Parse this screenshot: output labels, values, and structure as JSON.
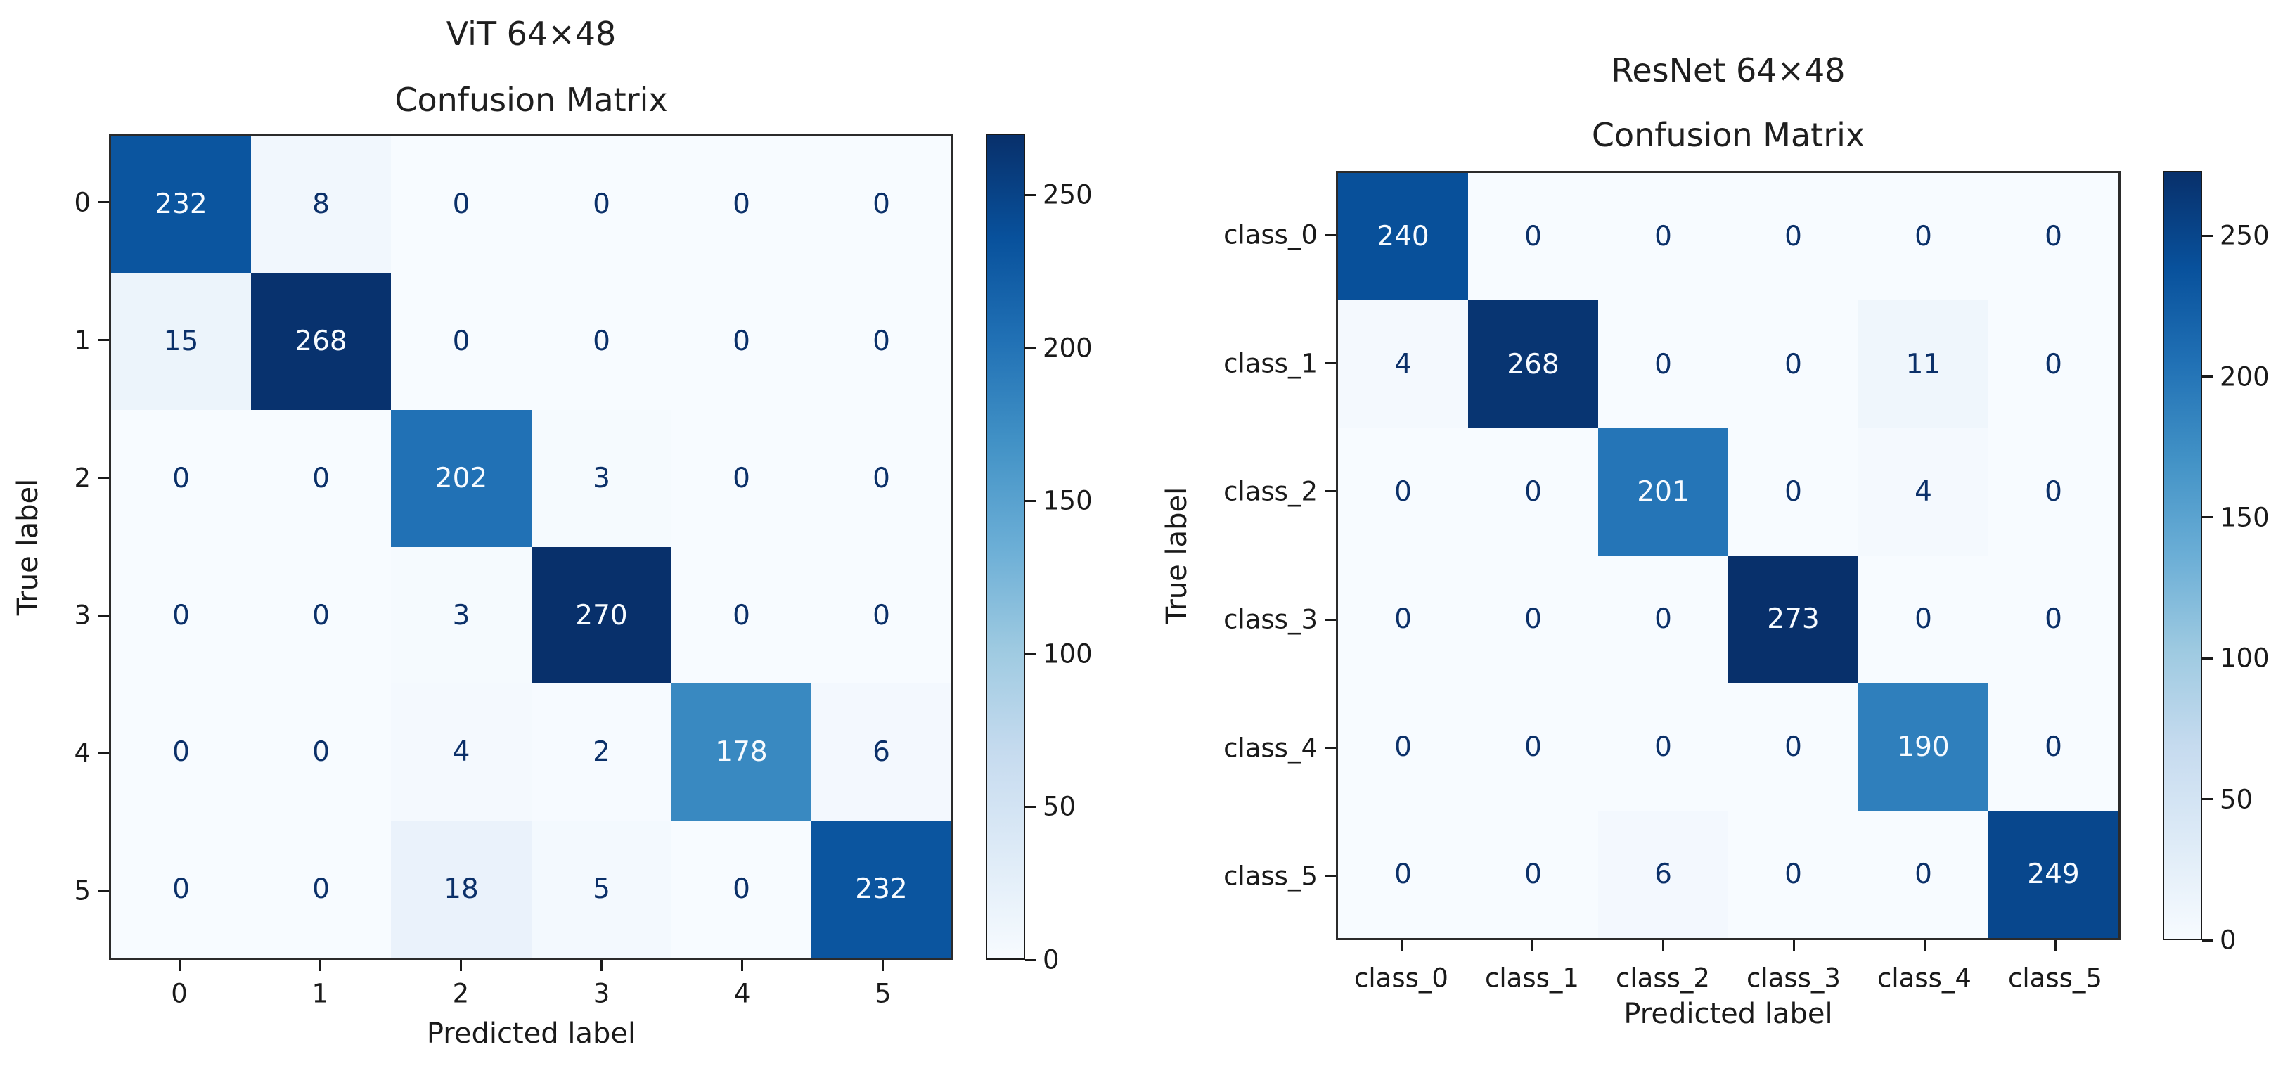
{
  "chart_data": [
    {
      "type": "heatmap",
      "suptitle": "ViT 64×48",
      "title": "Confusion Matrix",
      "xlabel": "Predicted label",
      "ylabel": "True label",
      "x_tick_labels": [
        "0",
        "1",
        "2",
        "3",
        "4",
        "5"
      ],
      "y_tick_labels": [
        "0",
        "1",
        "2",
        "3",
        "4",
        "5"
      ],
      "matrix": [
        [
          232,
          8,
          0,
          0,
          0,
          0
        ],
        [
          15,
          268,
          0,
          0,
          0,
          0
        ],
        [
          0,
          0,
          202,
          3,
          0,
          0
        ],
        [
          0,
          0,
          3,
          270,
          0,
          0
        ],
        [
          0,
          0,
          4,
          2,
          178,
          6
        ],
        [
          0,
          0,
          18,
          5,
          0,
          232
        ]
      ],
      "vmin": 0,
      "vmax": 270,
      "colorbar_ticks": [
        0,
        50,
        100,
        150,
        200,
        250
      ],
      "colormap": "Blues",
      "colorbar_position": "right",
      "grid": false
    },
    {
      "type": "heatmap",
      "suptitle": "ResNet 64×48",
      "title": "Confusion Matrix",
      "xlabel": "Predicted label",
      "ylabel": "True label",
      "x_tick_labels": [
        "class_0",
        "class_1",
        "class_2",
        "class_3",
        "class_4",
        "class_5"
      ],
      "y_tick_labels": [
        "class_0",
        "class_1",
        "class_2",
        "class_3",
        "class_4",
        "class_5"
      ],
      "matrix": [
        [
          240,
          0,
          0,
          0,
          0,
          0
        ],
        [
          4,
          268,
          0,
          0,
          11,
          0
        ],
        [
          0,
          0,
          201,
          0,
          4,
          0
        ],
        [
          0,
          0,
          0,
          273,
          0,
          0
        ],
        [
          0,
          0,
          0,
          0,
          190,
          0
        ],
        [
          0,
          0,
          6,
          0,
          0,
          249
        ]
      ],
      "vmin": 0,
      "vmax": 273,
      "colorbar_ticks": [
        0,
        50,
        100,
        150,
        200,
        250
      ],
      "colormap": "Blues",
      "colorbar_position": "right",
      "grid": false
    }
  ],
  "colors": {
    "colormap_stops": [
      "#f7fbff",
      "#deebf7",
      "#c6dbef",
      "#9ecae1",
      "#6baed6",
      "#4292c6",
      "#2171b5",
      "#08519c",
      "#08306b"
    ],
    "cell_text_dark": "#0b3069",
    "cell_text_light": "#f7fbff",
    "axis_text": "#1a1a1a",
    "title_text": "#1f1f1f",
    "spine": "#2b2b2b",
    "background": "#ffffff"
  }
}
